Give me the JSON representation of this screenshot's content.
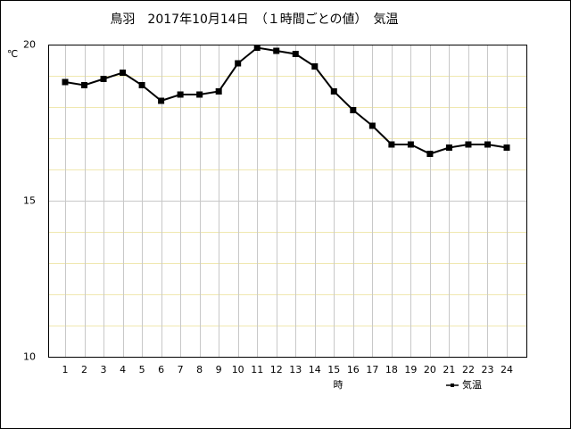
{
  "chart_data": {
    "type": "line",
    "title": "鳥羽　2017年10月14日　（１時間ごとの値）　気温",
    "y_label": "℃",
    "x_label": "時",
    "categories": [
      "1",
      "2",
      "3",
      "4",
      "5",
      "6",
      "7",
      "8",
      "9",
      "10",
      "11",
      "12",
      "13",
      "14",
      "15",
      "16",
      "17",
      "18",
      "19",
      "20",
      "21",
      "22",
      "23",
      "24"
    ],
    "series": [
      {
        "name": "気温",
        "color": "#000000",
        "values": [
          18.8,
          18.7,
          18.9,
          19.1,
          18.7,
          18.2,
          18.4,
          18.4,
          18.5,
          19.4,
          19.9,
          19.8,
          19.7,
          19.3,
          18.5,
          17.9,
          17.4,
          16.8,
          16.8,
          16.5,
          16.7,
          16.8,
          16.8,
          16.7
        ]
      }
    ],
    "ylim": [
      10,
      20
    ],
    "yticks": [
      10,
      15,
      20
    ],
    "minor_yticks": [
      11,
      12,
      13,
      14,
      16,
      17,
      18,
      19
    ],
    "grid": true
  }
}
